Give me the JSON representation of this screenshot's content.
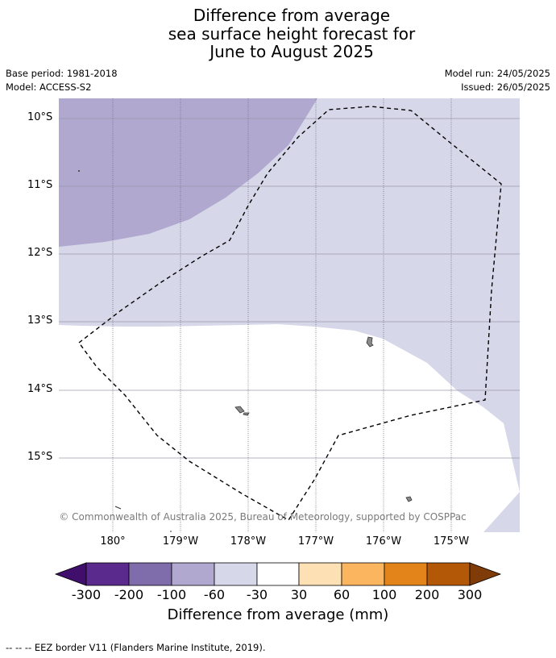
{
  "header": {
    "title_lines": [
      "Difference from average",
      "sea surface height forecast for",
      "June to August 2025"
    ],
    "base_period": "Base period: 1981-2018",
    "model": "Model: ACCESS-S2",
    "model_run": "Model run: 24/05/2025",
    "issued": "Issued: 26/05/2025"
  },
  "map": {
    "lat_labels": [
      "10°S",
      "11°S",
      "12°S",
      "13°S",
      "14°S",
      "15°S"
    ],
    "lon_labels": [
      "180°",
      "179°W",
      "178°W",
      "177°W",
      "176°W",
      "175°W"
    ],
    "copyright": "© Commonwealth of Australia 2025, Bureau of Meteorology, supported by COSPPac"
  },
  "colorbar": {
    "ticks": [
      "-300",
      "-200",
      "-100",
      "-60",
      "-30",
      "30",
      "60",
      "100",
      "200",
      "300"
    ],
    "colors": [
      "#3f0f6b",
      "#5a2a8c",
      "#7e6cab",
      "#b0a8cf",
      "#d6d7e9",
      "#ffffff",
      "#fde0b3",
      "#fbb55f",
      "#e3841a",
      "#b35806",
      "#7f3b08"
    ],
    "title": "Difference from average (mm)"
  },
  "footer": {
    "eez_legend": "--  --  -- EEZ border V11 (Flanders Marine Institute, 2019)."
  }
}
